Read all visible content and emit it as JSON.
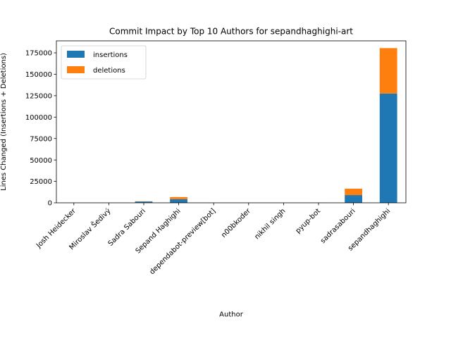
{
  "chart_data": {
    "type": "bar",
    "stacked": true,
    "title": "Commit Impact by Top 10 Authors for sepandhaghighi-art",
    "xlabel": "Author",
    "ylabel": "Lines Changed (Insertions + Deletions)",
    "categories": [
      "Josh Heidecker",
      "Miroslav Šedivý",
      "Sadra Sabouri",
      "Sepand Haghighi",
      "dependabot-preview[bot]",
      "n00bkoder",
      "nikhil singh",
      "pyup-bot",
      "sadrasabouri",
      "sepandhaghighi"
    ],
    "series": [
      {
        "name": "insertions",
        "color": "#1f77b4",
        "values": [
          10,
          20,
          1500,
          4200,
          40,
          10,
          10,
          60,
          9000,
          127500
        ]
      },
      {
        "name": "deletions",
        "color": "#ff7f0e",
        "values": [
          5,
          10,
          300,
          2500,
          20,
          5,
          5,
          40,
          7500,
          53000
        ]
      }
    ],
    "ylim": [
      0,
      189000
    ],
    "yticks": [
      0,
      25000,
      50000,
      75000,
      100000,
      125000,
      150000,
      175000
    ],
    "legend_position": "top-left",
    "grid": false
  }
}
